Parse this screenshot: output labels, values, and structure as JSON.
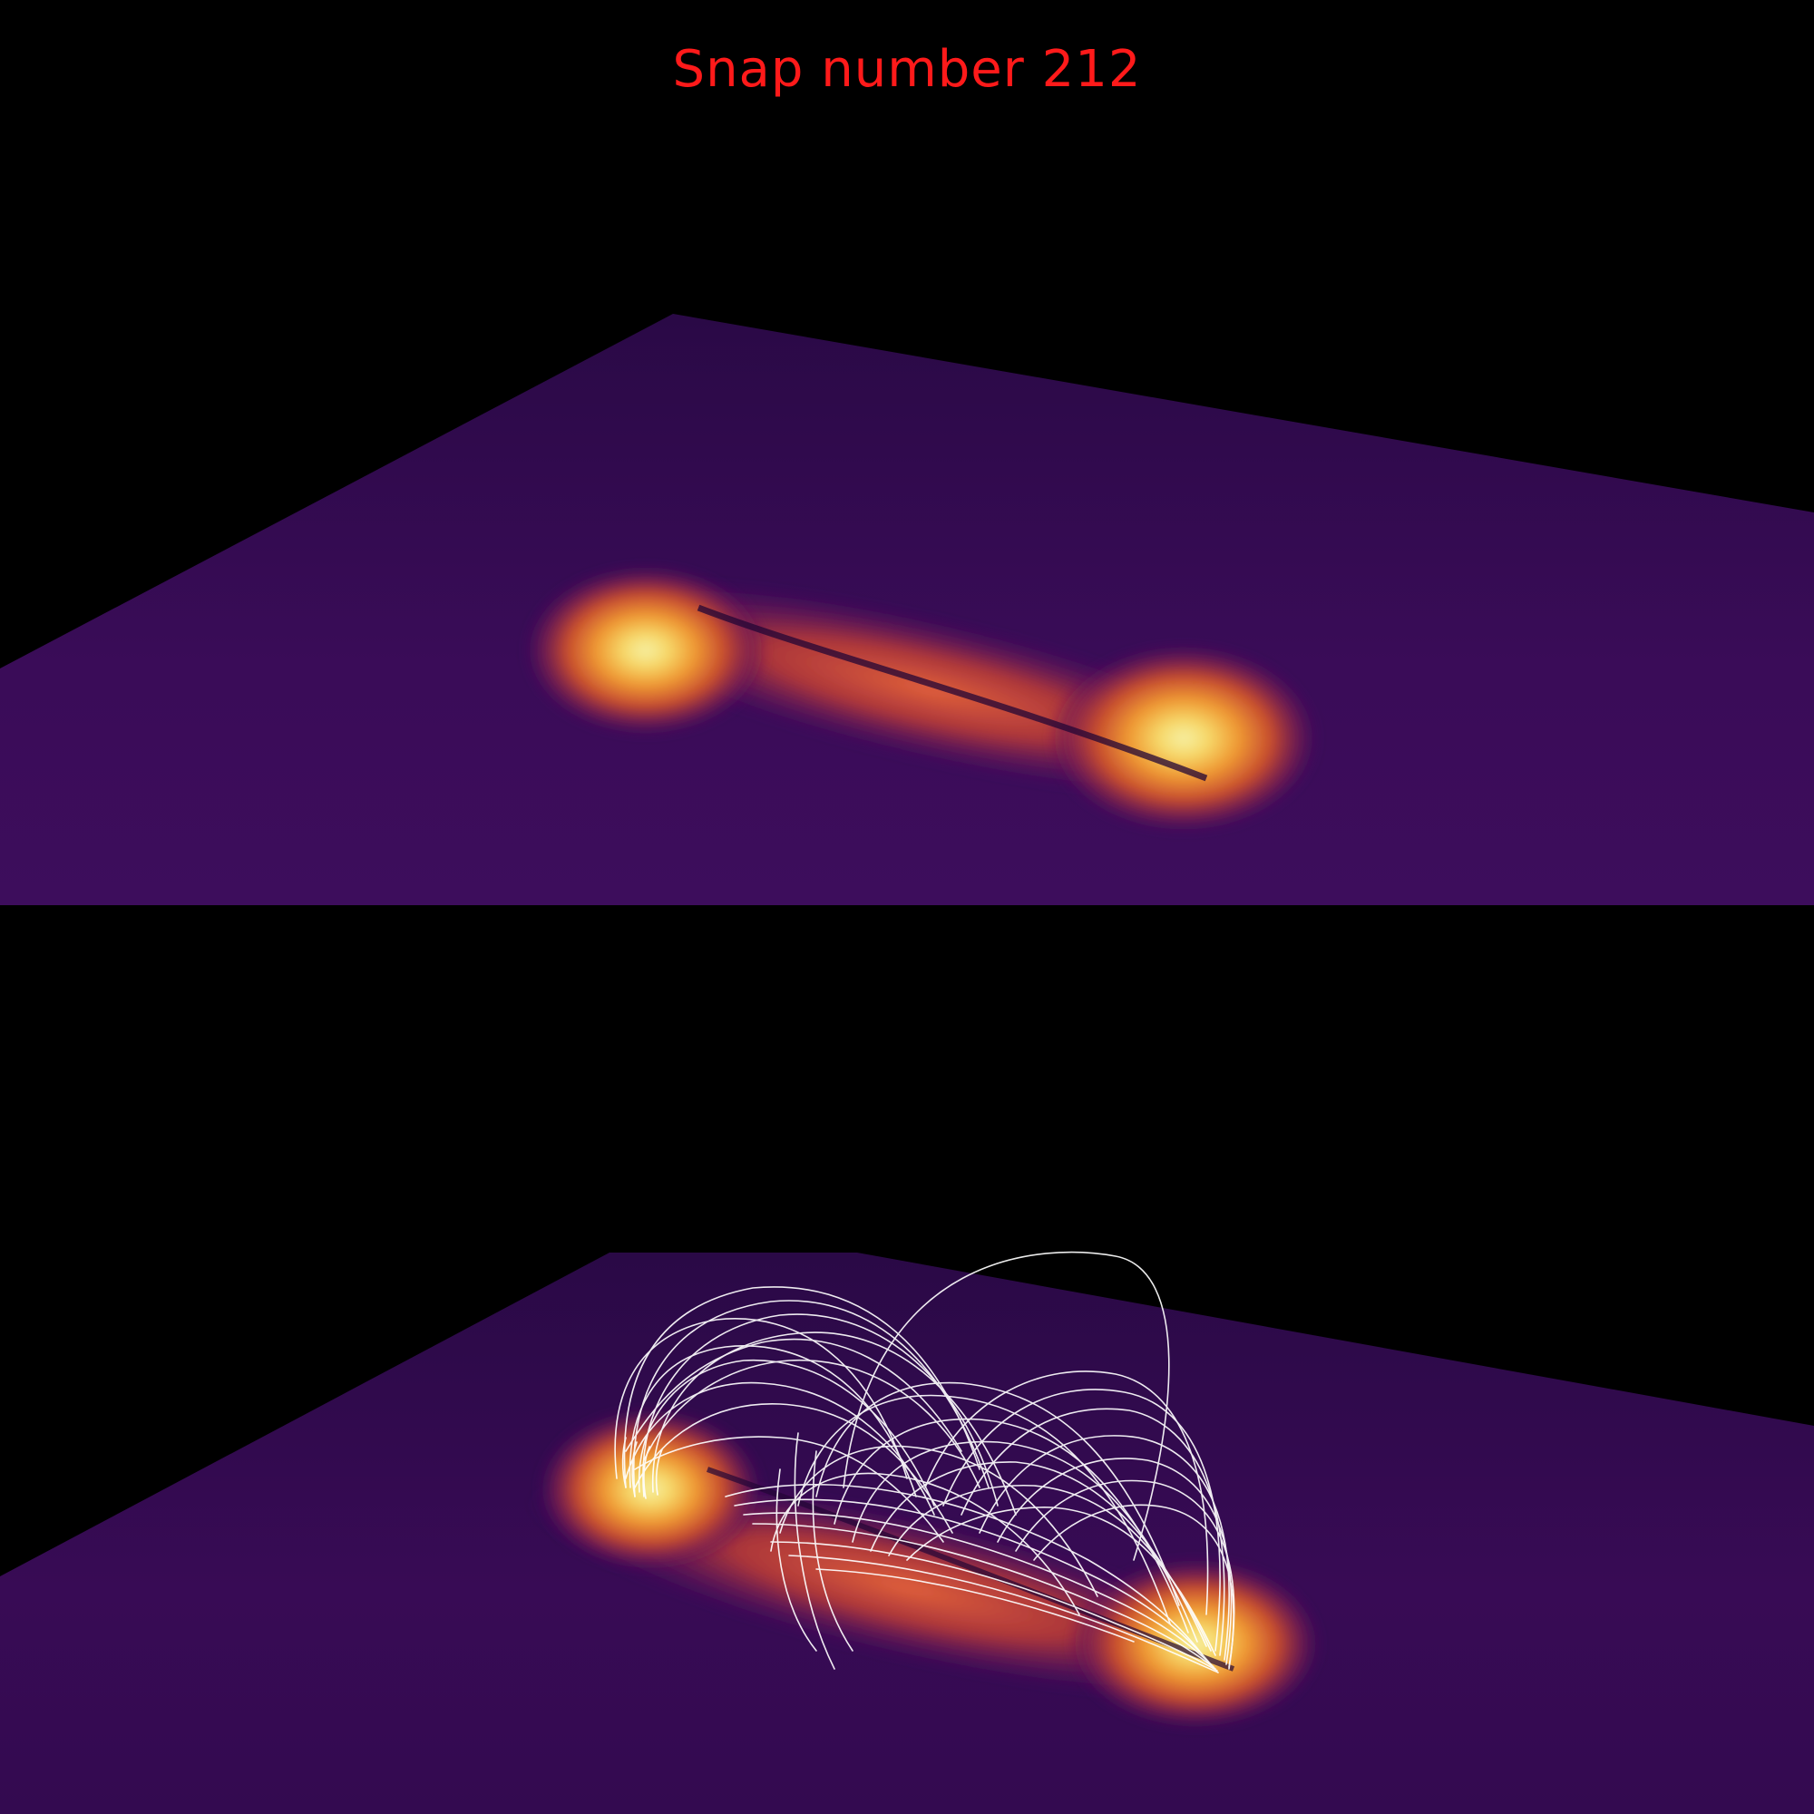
{
  "title": "Snap number 212",
  "colors": {
    "background": "#000000",
    "title": "#ff1a1a",
    "plane_dark": "#2e0a4a",
    "plane_mid": "#3d0d5c",
    "hot_core": "#f4e98f",
    "hot_mid": "#f0a030",
    "hot_outer": "#c8402c",
    "field_lines": "#ffffff"
  },
  "panels": [
    {
      "name": "surface-only",
      "field_lines": false
    },
    {
      "name": "surface-with-field-lines",
      "field_lines": true
    }
  ]
}
